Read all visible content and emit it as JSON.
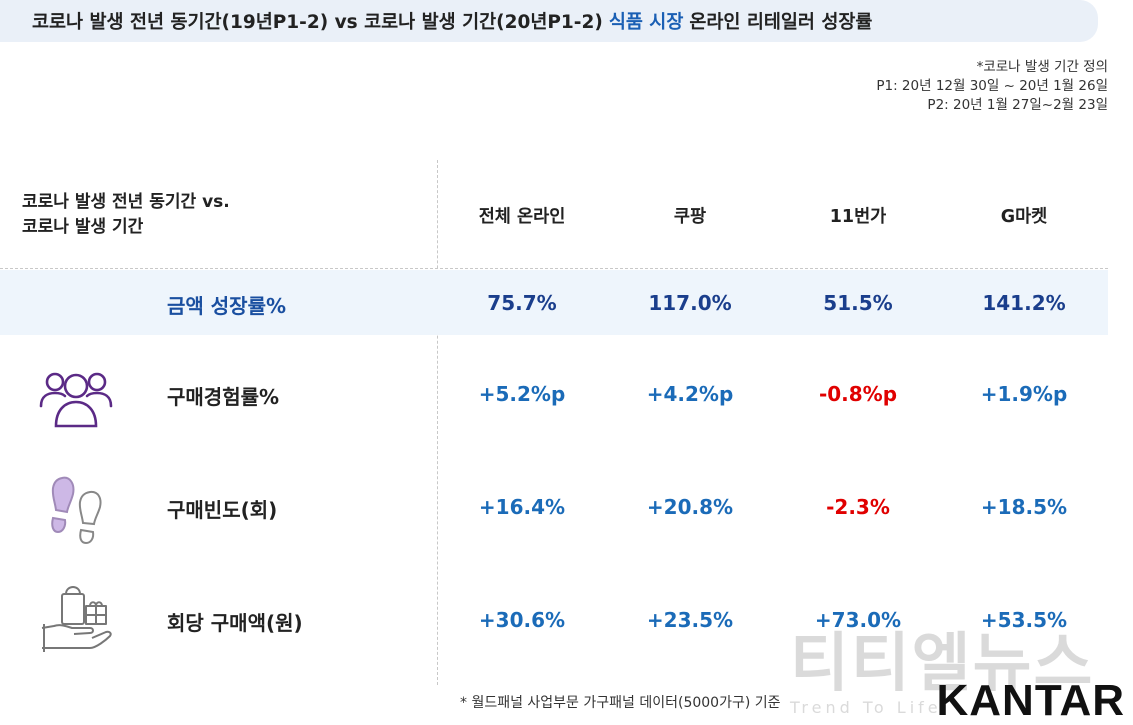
{
  "title": {
    "part1": "코로나 발생 전년 동기간(19년P1-2) vs 코로나 발생 기간(20년P1-2)",
    "highlight": "식품 시장",
    "part2": "온라인 리테일러 성장률"
  },
  "definition": {
    "heading": "*코로나 발생 기간 정의",
    "p1": "P1: 20년 12월 30일 ~ 20년 1월 26일",
    "p2": "P2: 20년 1월 27일~2월 23일"
  },
  "header": {
    "line1": "코로나 발생 전년 동기간 vs.",
    "line2": "코로나 발생 기간",
    "columns": [
      "전체 온라인",
      "쿠팡",
      "11번가",
      "G마켓"
    ]
  },
  "rows": [
    {
      "label": "금액 성장률%",
      "icon": "",
      "values": [
        "75.7%",
        "117.0%",
        "51.5%",
        "141.2%"
      ]
    },
    {
      "label": "구매경험률%",
      "icon": "people-group-icon",
      "values": [
        "+5.2%p",
        "+4.2%p",
        "-0.8%p",
        "+1.9%p"
      ]
    },
    {
      "label": "구매빈도(회)",
      "icon": "footprints-icon",
      "values": [
        "+16.4%",
        "+20.8%",
        "-2.3%",
        "+18.5%"
      ]
    },
    {
      "label": "회당 구매액(원)",
      "icon": "hand-shopping-bag-icon",
      "values": [
        "+30.6%",
        "+23.5%",
        "+73.0%",
        "+53.5%"
      ]
    }
  ],
  "footnote": "* 월드패널 사업부문 가구패널 데이터(5000가구) 기준",
  "watermark": {
    "main": "티티엘뉴스",
    "sub": "Trend To Life"
  },
  "logo": "KANTAR",
  "colors": {
    "accent": "#1a5fb4",
    "positive": "#1b6bb8",
    "negative": "#e00000",
    "band": "#eef5fc"
  }
}
